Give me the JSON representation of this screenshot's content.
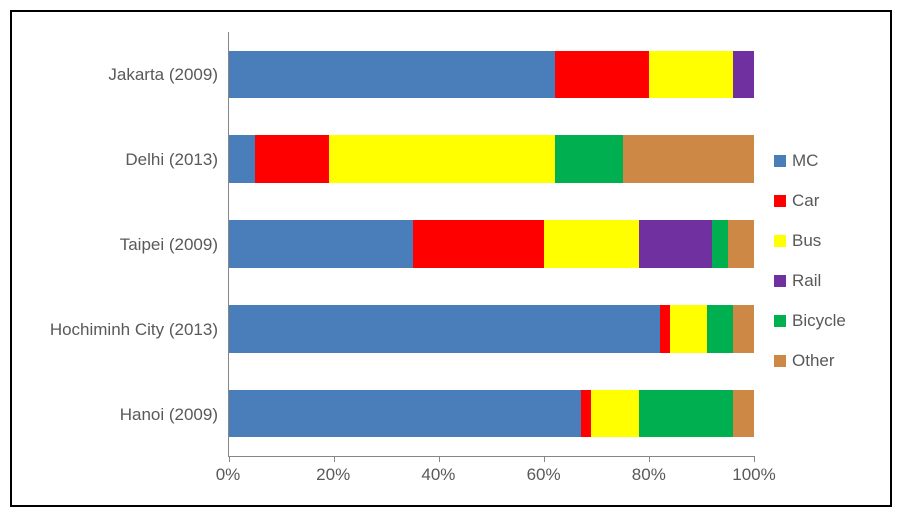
{
  "chart": {
    "type": "stacked-bar-horizontal",
    "background_color": "#ffffff",
    "border_color": "#000000",
    "axis_color": "#868686",
    "label_color": "#595959",
    "label_fontsize": 17,
    "xlim": [
      0,
      100
    ],
    "xtick_step": 20,
    "x_ticks": [
      "0%",
      "20%",
      "40%",
      "60%",
      "80%",
      "100%"
    ],
    "categories": [
      "Jakarta (2009)",
      "Delhi (2013)",
      "Taipei (2009)",
      "Hochiminh City (2013)",
      "Hanoi (2009)"
    ],
    "series": [
      {
        "name": "MC",
        "color": "#4a7ebb"
      },
      {
        "name": "Car",
        "color": "#ff0000"
      },
      {
        "name": "Bus",
        "color": "#ffff00"
      },
      {
        "name": "Rail",
        "color": "#7030a0"
      },
      {
        "name": "Bicycle",
        "color": "#00b050"
      },
      {
        "name": "Other",
        "color": "#cc8844"
      }
    ],
    "data": [
      [
        62,
        18,
        16,
        4,
        0,
        0
      ],
      [
        5,
        14,
        43,
        0,
        13,
        25
      ],
      [
        35,
        25,
        18,
        14,
        3,
        5
      ],
      [
        82,
        2,
        7,
        0,
        5,
        4
      ],
      [
        67,
        2,
        9,
        0,
        18,
        4
      ]
    ],
    "bar_height_ratio": 0.56
  }
}
